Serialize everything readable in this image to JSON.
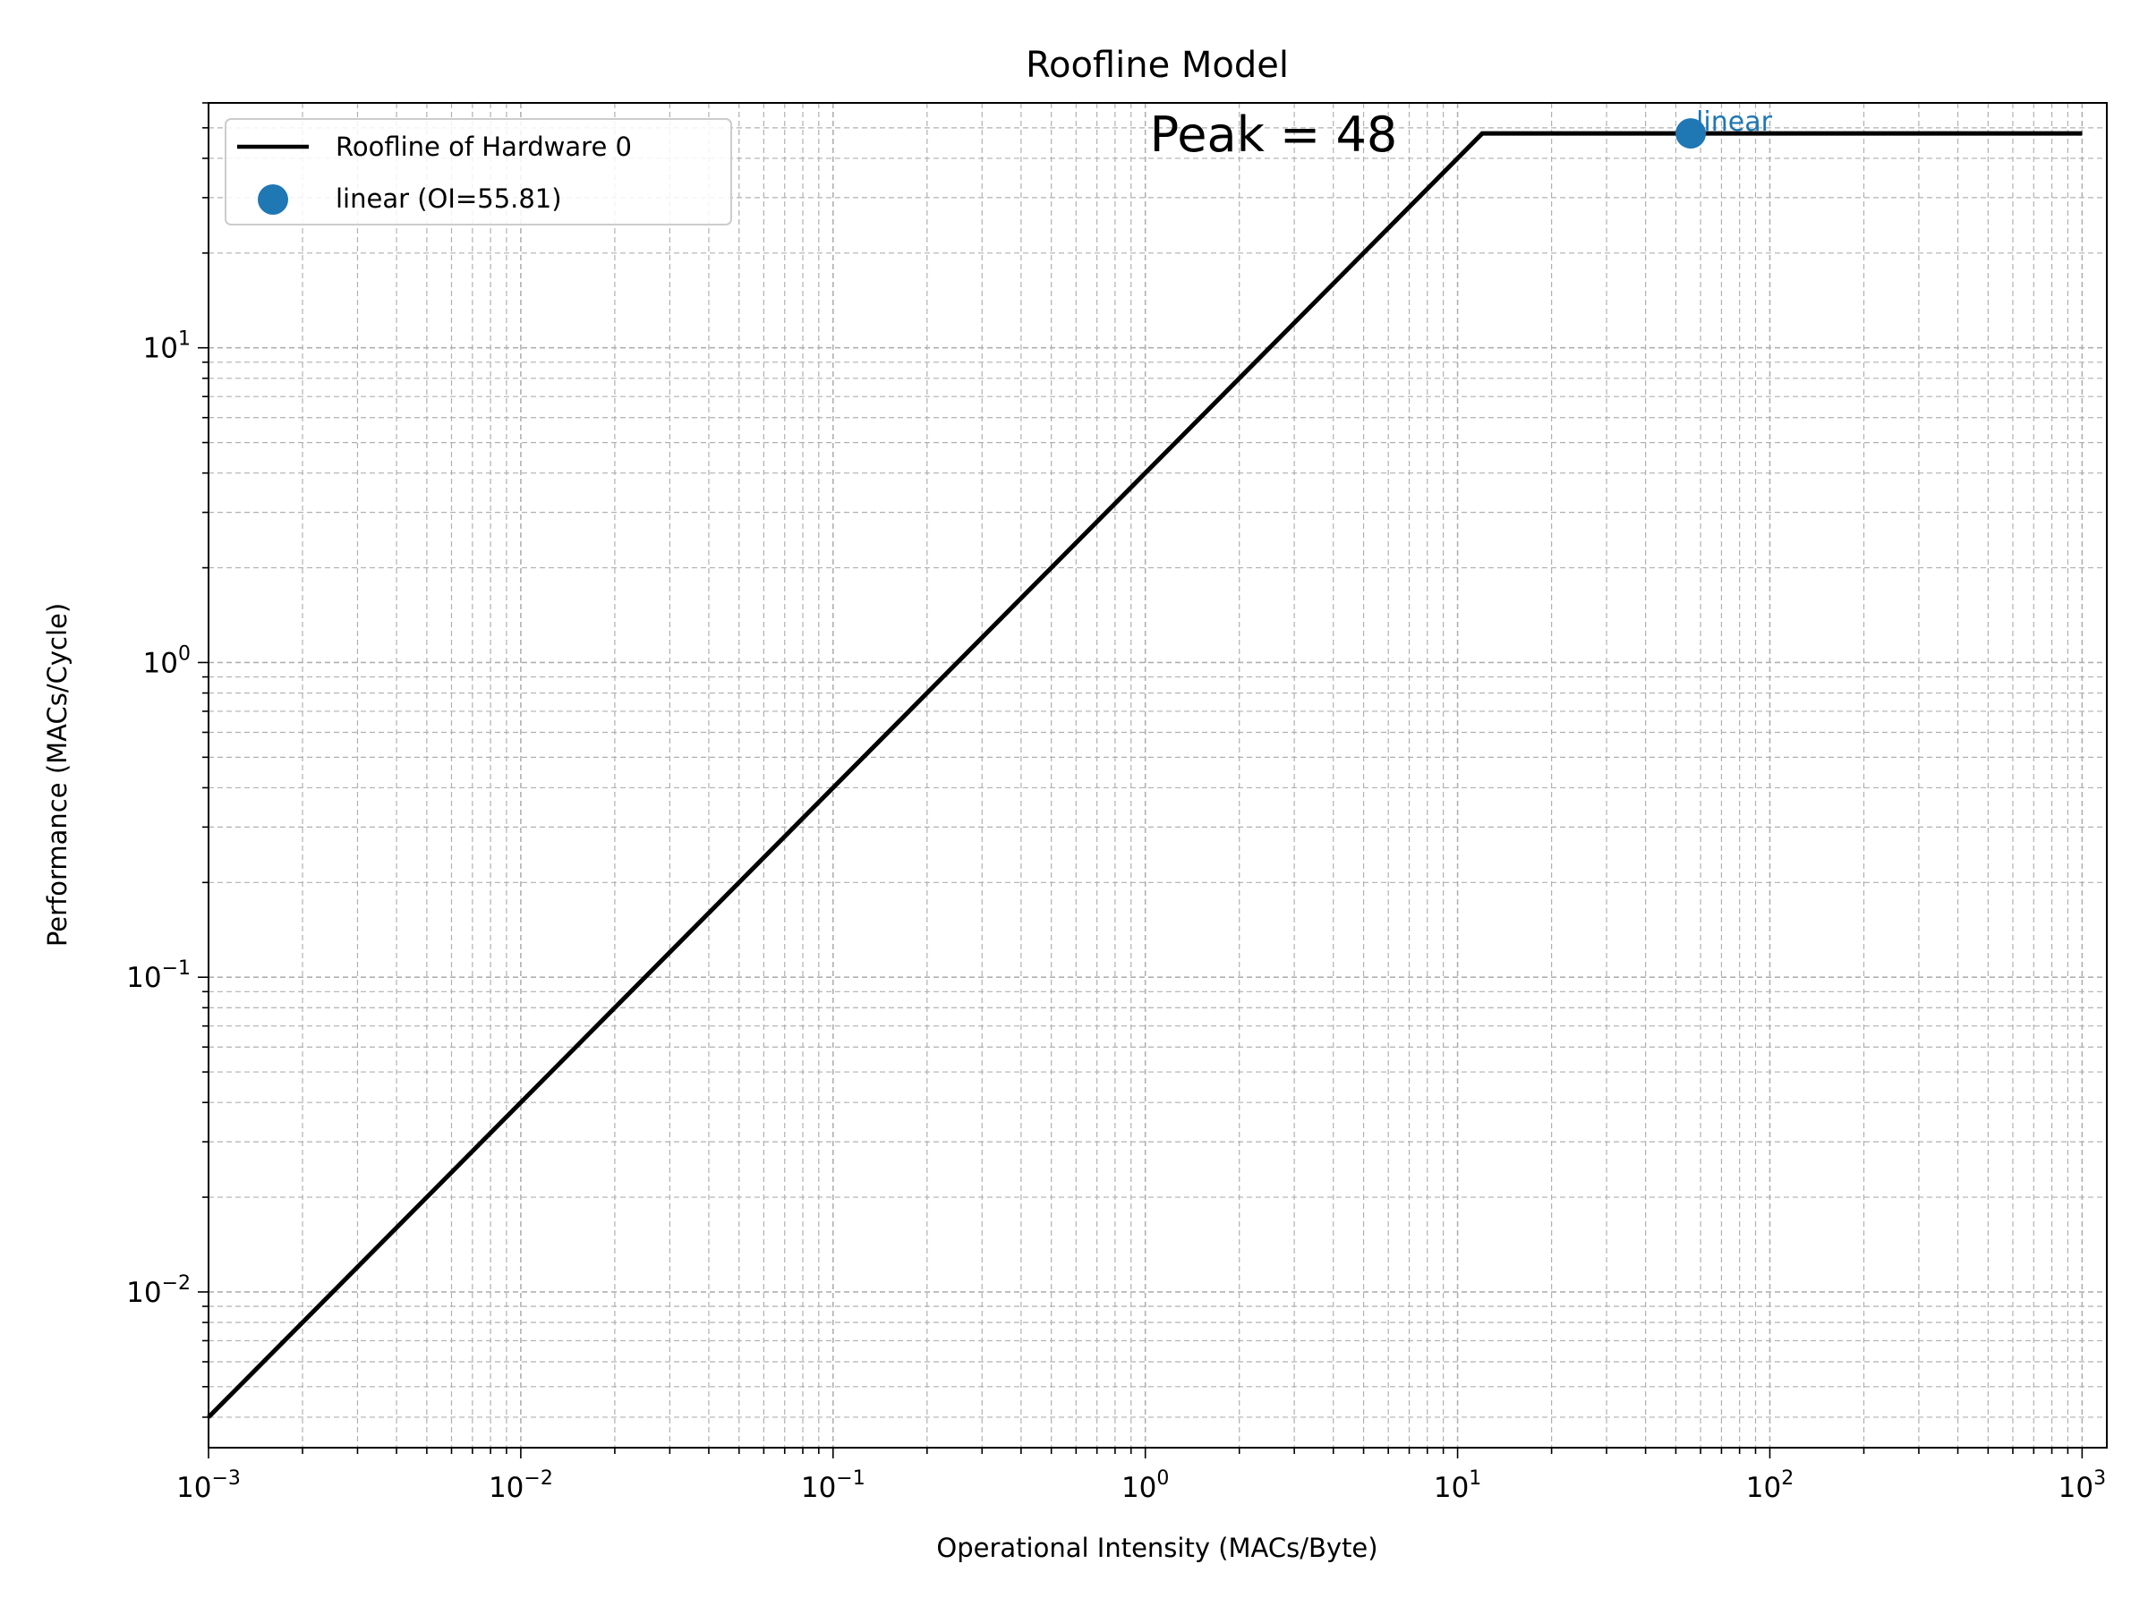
{
  "chart_data": {
    "type": "line",
    "title": "Roofline Model",
    "xlabel": "Operational Intensity (MACs/Byte)",
    "ylabel": "Performance (MACs/Cycle)",
    "xscale": "log",
    "yscale": "log",
    "xlim": [
      0.001,
      1200
    ],
    "ylim": [
      0.0032,
      60
    ],
    "grid": true,
    "grid_style": "dashed, major and minor",
    "legend_position": "upper-left",
    "x_ticks": [
      {
        "value": 0.001,
        "base": "10",
        "exp": "−3"
      },
      {
        "value": 0.01,
        "base": "10",
        "exp": "−2"
      },
      {
        "value": 0.1,
        "base": "10",
        "exp": "−1"
      },
      {
        "value": 1,
        "base": "10",
        "exp": "0"
      },
      {
        "value": 10,
        "base": "10",
        "exp": "1"
      },
      {
        "value": 100,
        "base": "10",
        "exp": "2"
      },
      {
        "value": 1000,
        "base": "10",
        "exp": "3"
      }
    ],
    "y_ticks": [
      {
        "value": 0.01,
        "base": "10",
        "exp": "−2"
      },
      {
        "value": 0.1,
        "base": "10",
        "exp": "−1"
      },
      {
        "value": 1,
        "base": "10",
        "exp": "0"
      },
      {
        "value": 10,
        "base": "10",
        "exp": "1"
      }
    ],
    "series": [
      {
        "name": "Roofline of Hardware 0",
        "kind": "line",
        "color": "#000000",
        "x": [
          0.001,
          12,
          1000
        ],
        "y": [
          0.004,
          48,
          48
        ]
      },
      {
        "name": "linear (OI=55.81)",
        "kind": "scatter",
        "color": "#1f77b4",
        "x": [
          55.81
        ],
        "y": [
          48
        ],
        "point_label": "linear"
      }
    ],
    "annotations": [
      {
        "text": "Peak = 48",
        "x": 1.0,
        "y": 48
      }
    ]
  }
}
